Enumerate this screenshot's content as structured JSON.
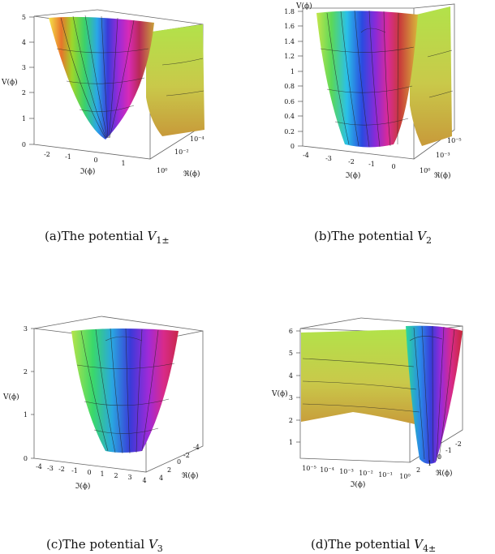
{
  "figures": [
    {
      "id": "a",
      "caption_prefix": "(a)The potential ",
      "symbol": "V",
      "subscript": "1±",
      "z_label": "V(ϕ)",
      "x_label": "ℑ(ϕ)",
      "y_label": "ℜ(ϕ)",
      "z_ticks": [
        "0",
        "1",
        "2",
        "3",
        "4",
        "5"
      ],
      "x_ticks": [
        "-2",
        "-1",
        "0",
        "1"
      ],
      "y_ticks": [
        "10⁰",
        "10⁻²",
        "10⁻⁴"
      ]
    },
    {
      "id": "b",
      "caption_prefix": "(b)The potential ",
      "symbol": "V",
      "subscript": "2",
      "z_label": "V(ϕ)",
      "x_label": "ℑ(ϕ)",
      "y_label": "ℜ(ϕ)",
      "z_ticks": [
        "0",
        "0.2",
        "0.4",
        "0.6",
        "0.8",
        "1",
        "1.2",
        "1.4",
        "1.6",
        "1.8"
      ],
      "x_ticks": [
        "-4",
        "-3",
        "-2",
        "-1",
        "0"
      ],
      "y_ticks": [
        "10⁰",
        "10⁻³",
        "10⁻⁵"
      ]
    },
    {
      "id": "c",
      "caption_prefix": "(c)The potential ",
      "symbol": "V",
      "subscript": "3",
      "z_label": "V(ϕ)",
      "x_label": "ℑ(ϕ)",
      "y_label": "ℜ(ϕ)",
      "z_ticks": [
        "0",
        "1",
        "2",
        "3"
      ],
      "x_ticks": [
        "-4",
        "-3",
        "-2",
        "-1",
        "0",
        "1",
        "2",
        "3",
        "4"
      ],
      "y_ticks": [
        "4",
        "2",
        "0",
        "-2",
        "-4"
      ]
    },
    {
      "id": "d",
      "caption_prefix": "(d)The potential ",
      "symbol": "V",
      "subscript": "4±",
      "z_label": "V(ϕ)",
      "x_label": "ℑ(ϕ)",
      "y_label": "ℜ(ϕ)",
      "z_ticks": [
        "1",
        "2",
        "3",
        "4",
        "5",
        "6"
      ],
      "x_ticks": [
        "10⁻⁵",
        "10⁻⁴",
        "10⁻³",
        "10⁻²",
        "10⁻¹",
        "10⁰"
      ],
      "y_ticks": [
        "2",
        "1",
        "0",
        "-1",
        "-2"
      ]
    }
  ]
}
